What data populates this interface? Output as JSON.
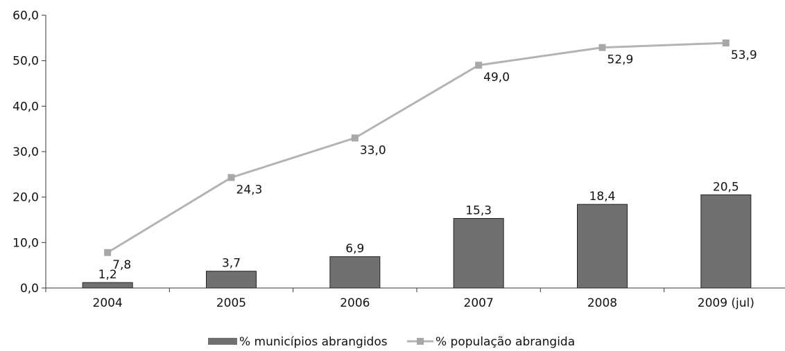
{
  "chart_data": {
    "type": "bar",
    "categories": [
      "2004",
      "2005",
      "2006",
      "2007",
      "2008",
      "2009 (jul)"
    ],
    "series": [
      {
        "name": "% municípios abrangidos",
        "type": "bar",
        "values": [
          1.2,
          3.7,
          6.9,
          15.3,
          18.4,
          20.5
        ],
        "labels": [
          "1,2",
          "3,7",
          "6,9",
          "15,3",
          "18,4",
          "20,5"
        ]
      },
      {
        "name": "% população abrangida",
        "type": "line",
        "values": [
          7.8,
          24.3,
          33.0,
          49.0,
          52.9,
          53.9
        ],
        "labels": [
          "7,8",
          "24,3",
          "33,0",
          "49,0",
          "52,9",
          "53,9"
        ]
      }
    ],
    "ylim": [
      0,
      60
    ],
    "yticks": [
      "0,0",
      "10,0",
      "20,0",
      "30,0",
      "40,0",
      "50,0",
      "60,0"
    ],
    "legend": "bottom",
    "colors": {
      "bar": "#707070",
      "line": "#b3b3b3",
      "marker": "#a8a8a8"
    }
  }
}
